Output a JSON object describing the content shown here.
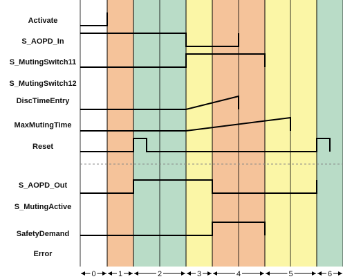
{
  "colors": {
    "phase_fill": [
      "#ffffff",
      "#f5c39a",
      "#b9dcc7",
      "#fbf6a6",
      "#f5c39a",
      "#fbf6a6",
      "#b9dcc7"
    ],
    "waveform": "#000000",
    "boundary": "#000000",
    "separator": "#888888"
  },
  "phases": [
    "0",
    "1",
    "2",
    "3",
    "4",
    "5",
    "6"
  ],
  "signals": [
    {
      "key": "activate",
      "label": "Activate",
      "type": "digital",
      "initial": 0,
      "transitions": [
        1
      ],
      "pulse": null
    },
    {
      "key": "s_aopd_in",
      "label": "S_AOPD_In",
      "type": "digital",
      "initial": 1,
      "transitions": [
        4,
        6
      ],
      "pulse": null
    },
    {
      "key": "s_mutingswitch11",
      "label": "S_MutingSwitch11",
      "type": "digital",
      "initial": 0,
      "transitions": [
        4,
        7
      ],
      "pulse": null
    },
    {
      "key": "s_mutingswitch12",
      "label": "S_MutingSwitch12",
      "type": "digital",
      "initial": 0,
      "transitions": [],
      "pulse": null
    },
    {
      "key": "disctimeentry",
      "label": "DiscTimeEntry",
      "type": "ramp",
      "ramp_start": 4,
      "ramp_end": 6
    },
    {
      "key": "maxmutingtime",
      "label": "MaxMutingTime",
      "type": "ramp",
      "ramp_start": 4,
      "ramp_end": 8
    },
    {
      "key": "reset",
      "label": "Reset",
      "type": "digital",
      "initial": 0,
      "transitions": [],
      "pulse": [
        2,
        2.5,
        9,
        9.5
      ]
    },
    {
      "key": "s_aopd_out",
      "label": "S_AOPD_Out",
      "type": "digital",
      "initial": 0,
      "transitions": [
        2,
        5,
        9
      ],
      "pulse": null
    },
    {
      "key": "s_mutingactive",
      "label": "S_MutingActive",
      "type": "digital",
      "initial": 0,
      "transitions": [],
      "pulse": null
    },
    {
      "key": "safetydemand",
      "label": "SafetyDemand",
      "type": "digital",
      "initial": 0,
      "transitions": [
        5,
        7
      ],
      "pulse": null
    },
    {
      "key": "error",
      "label": "Error",
      "type": "digital",
      "initial": 0,
      "transitions": [],
      "pulse": null
    }
  ]
}
